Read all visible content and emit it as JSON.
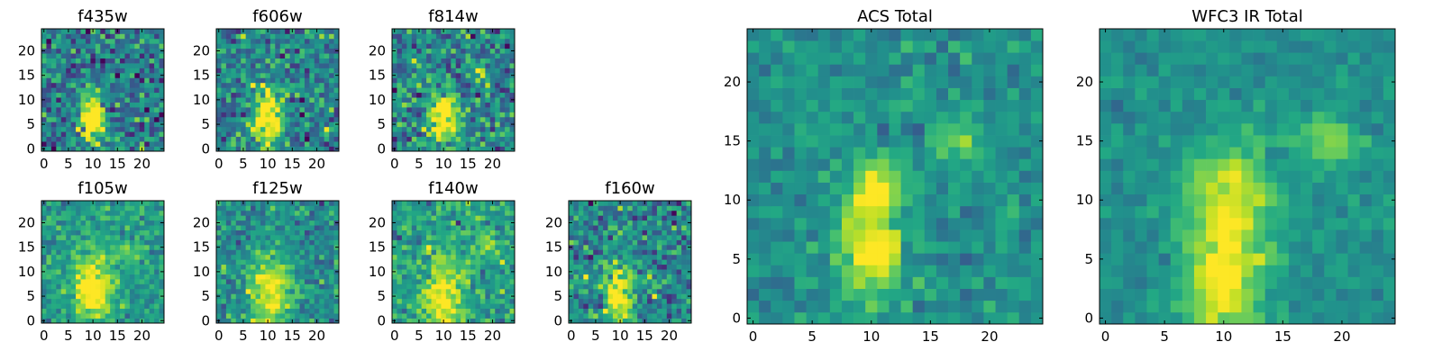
{
  "figure": {
    "colormap": "viridis",
    "panel_count": 9
  },
  "chart_data": [
    {
      "type": "heatmap",
      "title": "f435w",
      "xticks": [
        "0",
        "5",
        "10",
        "15",
        "20"
      ],
      "yticks": [
        "0",
        "5",
        "10",
        "15",
        "20"
      ],
      "xlim": [
        0,
        25
      ],
      "ylim": [
        0,
        25
      ],
      "grid_size": [
        25,
        25
      ],
      "blobs": [
        {
          "cx": 10.5,
          "cy": 7,
          "sx": 1.8,
          "sy": 3.5,
          "a": 0.75
        }
      ],
      "noise": 0.45,
      "base": 0.42
    },
    {
      "type": "heatmap",
      "title": "f606w",
      "xticks": [
        "0",
        "5",
        "10",
        "15",
        "20"
      ],
      "yticks": [
        "0",
        "5",
        "10",
        "15",
        "20"
      ],
      "xlim": [
        0,
        25
      ],
      "ylim": [
        0,
        25
      ],
      "grid_size": [
        25,
        25
      ],
      "blobs": [
        {
          "cx": 10.5,
          "cy": 7,
          "sx": 2,
          "sy": 4,
          "a": 0.8
        }
      ],
      "noise": 0.42,
      "base": 0.45
    },
    {
      "type": "heatmap",
      "title": "f814w",
      "xticks": [
        "0",
        "5",
        "10",
        "15",
        "20"
      ],
      "yticks": [
        "0",
        "5",
        "10",
        "15",
        "20"
      ],
      "xlim": [
        0,
        25
      ],
      "ylim": [
        0,
        25
      ],
      "grid_size": [
        25,
        25
      ],
      "blobs": [
        {
          "cx": 10.5,
          "cy": 7,
          "sx": 2,
          "sy": 4,
          "a": 0.7
        },
        {
          "cx": 18,
          "cy": 16,
          "sx": 1.2,
          "sy": 1.2,
          "a": 0.45
        }
      ],
      "noise": 0.42,
      "base": 0.45
    },
    {
      "type": "heatmap",
      "title": "f105w",
      "xticks": [
        "0",
        "5",
        "10",
        "15",
        "20"
      ],
      "yticks": [
        "0",
        "5",
        "10",
        "15",
        "20"
      ],
      "xlim": [
        0,
        25
      ],
      "ylim": [
        0,
        25
      ],
      "grid_size": [
        25,
        25
      ],
      "blobs": [
        {
          "cx": 10.5,
          "cy": 7,
          "sx": 2.6,
          "sy": 5,
          "a": 0.6
        },
        {
          "cx": 18,
          "cy": 15,
          "sx": 1.8,
          "sy": 1.6,
          "a": 0.25
        }
      ],
      "noise": 0.25,
      "base": 0.55
    },
    {
      "type": "heatmap",
      "title": "f125w",
      "xticks": [
        "0",
        "5",
        "10",
        "15",
        "20"
      ],
      "yticks": [
        "0",
        "5",
        "10",
        "15",
        "20"
      ],
      "xlim": [
        0,
        25
      ],
      "ylim": [
        0,
        25
      ],
      "grid_size": [
        25,
        25
      ],
      "blobs": [
        {
          "cx": 11,
          "cy": 6,
          "sx": 2.8,
          "sy": 5,
          "a": 0.5
        }
      ],
      "noise": 0.3,
      "base": 0.5
    },
    {
      "type": "heatmap",
      "title": "f140w",
      "xticks": [
        "0",
        "5",
        "10",
        "15",
        "20"
      ],
      "yticks": [
        "0",
        "5",
        "10",
        "15",
        "20"
      ],
      "xlim": [
        0,
        25
      ],
      "ylim": [
        0,
        25
      ],
      "grid_size": [
        25,
        25
      ],
      "blobs": [
        {
          "cx": 10.5,
          "cy": 6,
          "sx": 3,
          "sy": 5,
          "a": 0.5
        },
        {
          "cx": 19,
          "cy": 16,
          "sx": 2,
          "sy": 1.8,
          "a": 0.25
        }
      ],
      "noise": 0.3,
      "base": 0.55
    },
    {
      "type": "heatmap",
      "title": "f160w",
      "xticks": [
        "0",
        "5",
        "10",
        "15",
        "20"
      ],
      "yticks": [
        "0",
        "5",
        "10",
        "15",
        "20"
      ],
      "xlim": [
        0,
        25
      ],
      "ylim": [
        0,
        25
      ],
      "grid_size": [
        25,
        25
      ],
      "blobs": [
        {
          "cx": 10,
          "cy": 6,
          "sx": 2.2,
          "sy": 5,
          "a": 0.6
        }
      ],
      "noise": 0.38,
      "base": 0.45
    },
    {
      "type": "heatmap",
      "title": "ACS Total",
      "xticks": [
        "0",
        "5",
        "10",
        "15",
        "20"
      ],
      "yticks": [
        "0",
        "5",
        "10",
        "15",
        "20"
      ],
      "xlim": [
        0,
        25
      ],
      "ylim": [
        0,
        25
      ],
      "grid_size": [
        25,
        25
      ],
      "blobs": [
        {
          "cx": 10.5,
          "cy": 6.5,
          "sx": 1.8,
          "sy": 3.2,
          "a": 0.55
        },
        {
          "cx": 11,
          "cy": 12,
          "sx": 1.4,
          "sy": 1.5,
          "a": 0.45
        },
        {
          "cx": 18,
          "cy": 15.5,
          "sx": 1.3,
          "sy": 1.3,
          "a": 0.35
        }
      ],
      "noise": 0.2,
      "base": 0.5
    },
    {
      "type": "heatmap",
      "title": "WFC3 IR Total",
      "xticks": [
        "0",
        "5",
        "10",
        "15",
        "20"
      ],
      "yticks": [
        "0",
        "5",
        "10",
        "15",
        "20"
      ],
      "xlim": [
        0,
        25
      ],
      "ylim": [
        0,
        25
      ],
      "grid_size": [
        25,
        25
      ],
      "blobs": [
        {
          "cx": 10.5,
          "cy": 5,
          "sx": 2.5,
          "sy": 5.5,
          "a": 0.5
        },
        {
          "cx": 12,
          "cy": 12,
          "sx": 2.5,
          "sy": 2.5,
          "a": 0.2
        },
        {
          "cx": 19.5,
          "cy": 15.5,
          "sx": 1.8,
          "sy": 1.2,
          "a": 0.35
        }
      ],
      "noise": 0.15,
      "base": 0.5
    }
  ]
}
